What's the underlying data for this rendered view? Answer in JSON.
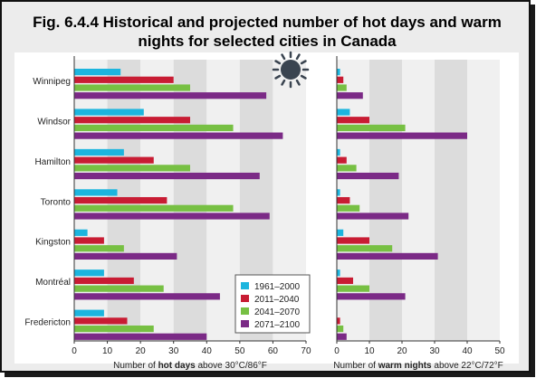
{
  "title": {
    "line1": "Fig. 6.4.4 Historical and projected number of hot days and warm",
    "line2": "nights for selected cities in Canada"
  },
  "colors": {
    "1961–2000": "#1cb5de",
    "2011–2040": "#c81c33",
    "2041–2070": "#77c043",
    "2071–2100": "#7b2a86",
    "band_dark": "#dcdcdc",
    "band_light": "#f0f0f0",
    "sun": "#3a4450",
    "moon": "#3a4450"
  },
  "icons": [
    "sun-icon",
    "moon-icon"
  ],
  "chart_data": [
    {
      "type": "bar",
      "orientation": "horizontal",
      "xlabel_prefix": "Number of ",
      "xlabel_bold": "hot days",
      "xlabel_suffix": " above 30°C/86°F",
      "xlim": [
        0,
        70
      ],
      "xticks": [
        0,
        10,
        20,
        30,
        40,
        50,
        60,
        70
      ],
      "categories": [
        "Winnipeg",
        "Windsor",
        "Hamilton",
        "Toronto",
        "Kingston",
        "Montréal",
        "Fredericton"
      ],
      "series": [
        {
          "name": "1961–2000",
          "values": [
            14,
            21,
            15,
            13,
            4,
            9,
            9
          ]
        },
        {
          "name": "2011–2040",
          "values": [
            30,
            35,
            24,
            28,
            9,
            18,
            16
          ]
        },
        {
          "name": "2041–2070",
          "values": [
            35,
            48,
            35,
            48,
            15,
            27,
            24
          ]
        },
        {
          "name": "2071–2100",
          "values": [
            58,
            63,
            56,
            59,
            31,
            44,
            40
          ]
        }
      ],
      "legend": {
        "placement": "lower-right",
        "entries": [
          "1961–2000",
          "2011–2040",
          "2041–2070",
          "2071–2100"
        ]
      }
    },
    {
      "type": "bar",
      "orientation": "horizontal",
      "xlabel_prefix": "Number of ",
      "xlabel_bold": "warm nights",
      "xlabel_suffix": " above 22°C/72°F",
      "xlim": [
        0,
        50
      ],
      "xticks": [
        0,
        10,
        20,
        30,
        40,
        50
      ],
      "categories": [
        "Winnipeg",
        "Windsor",
        "Hamilton",
        "Toronto",
        "Kingston",
        "Montréal",
        "Fredericton"
      ],
      "series": [
        {
          "name": "1961–2000",
          "values": [
            1,
            4,
            1,
            1,
            2,
            1,
            0
          ]
        },
        {
          "name": "2011–2040",
          "values": [
            2,
            10,
            3,
            4,
            10,
            5,
            1
          ]
        },
        {
          "name": "2041–2070",
          "values": [
            3,
            21,
            6,
            7,
            17,
            10,
            2
          ]
        },
        {
          "name": "2071–2100",
          "values": [
            8,
            40,
            19,
            22,
            31,
            21,
            3
          ]
        }
      ]
    }
  ]
}
